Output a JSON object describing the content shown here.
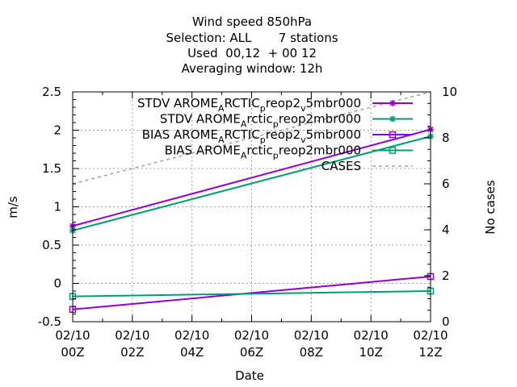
{
  "chart_data": {
    "type": "line",
    "title_lines": [
      "Wind speed 850hPa",
      "Selection: ALL       7 stations",
      "Used  00,12  + 00 12",
      "Averaging window: 12h"
    ],
    "xlabel": "Date",
    "ylabel": "m/s",
    "y2label": "No cases",
    "x_ticks": [
      {
        "value": 0,
        "date": "02/10",
        "hour": "00Z"
      },
      {
        "value": 2,
        "date": "02/10",
        "hour": "02Z"
      },
      {
        "value": 4,
        "date": "02/10",
        "hour": "04Z"
      },
      {
        "value": 6,
        "date": "02/10",
        "hour": "06Z"
      },
      {
        "value": 8,
        "date": "02/10",
        "hour": "08Z"
      },
      {
        "value": 10,
        "date": "02/10",
        "hour": "10Z"
      },
      {
        "value": 12,
        "date": "02/10",
        "hour": "12Z"
      }
    ],
    "xlim": [
      0,
      12
    ],
    "ylim": [
      -0.5,
      2.5
    ],
    "y_ticks": [
      "-0.5",
      "0",
      "0.5",
      "1",
      "1.5",
      "2",
      "2.5"
    ],
    "y2lim": [
      0,
      10
    ],
    "y2_ticks": [
      "0",
      "2",
      "4",
      "6",
      "8",
      "10"
    ],
    "grid": true,
    "legend_position": "top-right",
    "series": [
      {
        "name": "STDV AROME_ARCTIC_preop2_v_5mbr000",
        "legend_parts": [
          [
            "STDV AROME",
            ""
          ],
          [
            "A",
            "sub"
          ],
          [
            "RCTIC",
            ""
          ],
          [
            "p",
            "sub"
          ],
          [
            "reop2",
            ""
          ],
          [
            "v",
            "sub"
          ],
          [
            "5mbr000",
            ""
          ]
        ],
        "color": "#9400d3",
        "marker": "star",
        "axis": "y",
        "x": [
          0,
          12
        ],
        "y": [
          0.75,
          2.01
        ]
      },
      {
        "name": "STDV AROME_Arctic_preop2mbr000",
        "legend_parts": [
          [
            "STDV AROME",
            ""
          ],
          [
            "A",
            "sub"
          ],
          [
            "rctic",
            ""
          ],
          [
            "p",
            "sub"
          ],
          [
            "reop2mbr000",
            ""
          ]
        ],
        "color": "#009e73",
        "marker": "star",
        "axis": "y",
        "x": [
          0,
          12
        ],
        "y": [
          0.69,
          1.92
        ]
      },
      {
        "name": "BIAS AROME_ARCTIC_preop2_v_5mbr000",
        "legend_parts": [
          [
            "BIAS AROME",
            ""
          ],
          [
            "A",
            "sub"
          ],
          [
            "RCTIC",
            ""
          ],
          [
            "p",
            "sub"
          ],
          [
            "reop2",
            ""
          ],
          [
            "v",
            "sub"
          ],
          [
            "5mbr000",
            ""
          ]
        ],
        "color": "#9400d3",
        "marker": "square",
        "axis": "y",
        "x": [
          0,
          12
        ],
        "y": [
          -0.34,
          0.09
        ]
      },
      {
        "name": "BIAS AROME_Arctic_preop2mbr000",
        "legend_parts": [
          [
            "BIAS AROME",
            ""
          ],
          [
            "A",
            "sub"
          ],
          [
            "rctic",
            ""
          ],
          [
            "p",
            "sub"
          ],
          [
            "reop2mbr000",
            ""
          ]
        ],
        "color": "#009e73",
        "marker": "square",
        "axis": "y",
        "x": [
          0,
          12
        ],
        "y": [
          -0.17,
          -0.1
        ]
      },
      {
        "name": "CASES",
        "legend_parts": [
          [
            "CASES",
            ""
          ]
        ],
        "color": "#a0a0a0",
        "marker": "none",
        "dashed": true,
        "axis": "y2",
        "x": [
          0,
          12
        ],
        "y": [
          6,
          10
        ]
      }
    ]
  }
}
